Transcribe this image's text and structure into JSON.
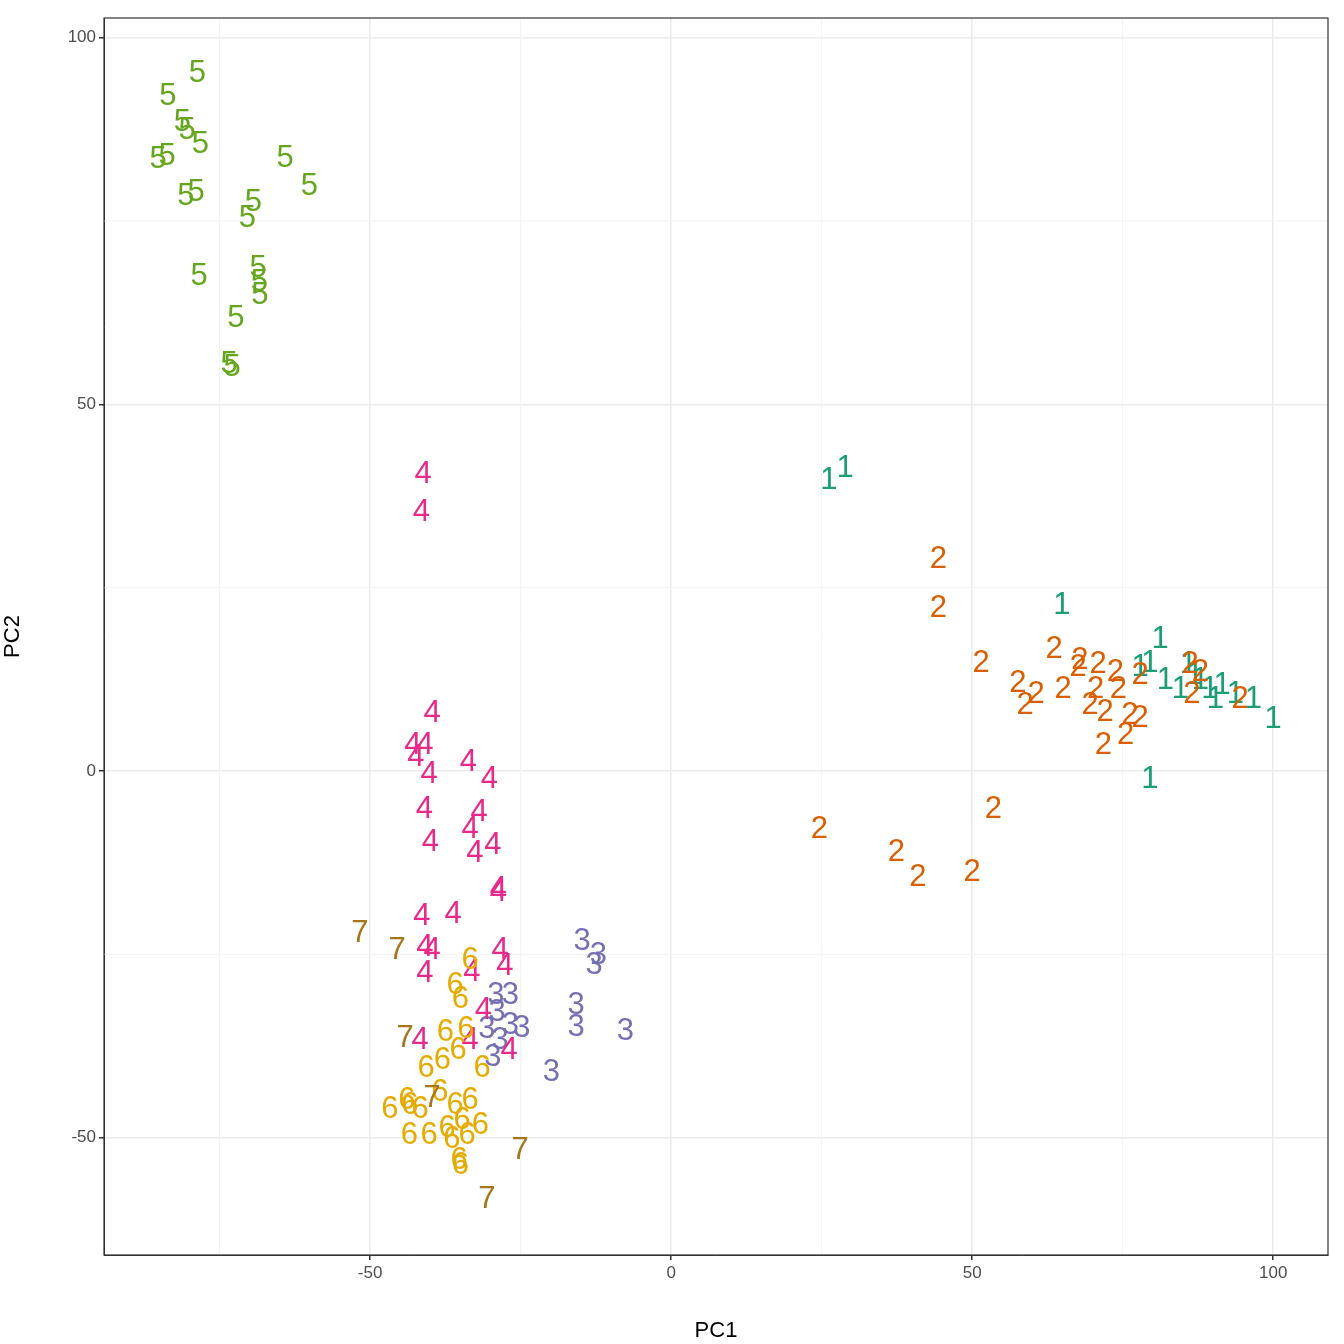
{
  "chart_data": {
    "type": "scatter",
    "x_label": "PC1",
    "y_label": "PC2",
    "xlim": [
      -94.2,
      109.1
    ],
    "ylim": [
      -66.0,
      102.7
    ],
    "xticks": [
      -50,
      0,
      50,
      100
    ],
    "yticks": [
      -50,
      0,
      50,
      100
    ],
    "grid": true,
    "series": [
      {
        "name": "1",
        "color": "#1b9e77",
        "marker": "text",
        "x": [
          26.2,
          28.9,
          64.9,
          81.2,
          79.5,
          82.1,
          85.9,
          87.9,
          89.5,
          91.5,
          93.7,
          90.4,
          96.7,
          100.0,
          79.5,
          87.0,
          77.9,
          84.6
        ],
        "y": [
          39.6,
          41.2,
          22.6,
          17.9,
          14.7,
          12.4,
          14.5,
          12.4,
          11.1,
          11.7,
          10.4,
          9.7,
          9.7,
          7.0,
          -1.2,
          13.1,
          14.1,
          11.1
        ]
      },
      {
        "name": "2",
        "color": "#d95f02",
        "marker": "text",
        "x": [
          44.4,
          44.4,
          51.5,
          63.6,
          57.6,
          60.6,
          58.8,
          65.1,
          67.9,
          70.9,
          73.8,
          70.5,
          74.3,
          77.9,
          69.6,
          72.1,
          76.2,
          77.9,
          71.8,
          75.5,
          86.2,
          87.9,
          86.5,
          94.5,
          53.5,
          24.6,
          37.4,
          41.0,
          50.0,
          67.6
        ],
        "y": [
          28.9,
          22.2,
          14.7,
          16.6,
          12.0,
          10.4,
          9.0,
          11.1,
          15.1,
          14.5,
          13.4,
          11.1,
          11.1,
          13.1,
          9.0,
          8.0,
          7.6,
          7.2,
          3.5,
          4.9,
          14.5,
          13.5,
          10.4,
          9.7,
          -5.3,
          -8.0,
          -11.1,
          -14.5,
          -13.8,
          14.1
        ]
      },
      {
        "name": "3",
        "color": "#7570b3",
        "marker": "text",
        "x": [
          -14.8,
          -12.1,
          -12.8,
          -29.1,
          -26.7,
          -15.8,
          -15.8,
          -7.6,
          -28.9,
          -24.8,
          -30.6,
          -28.4,
          -29.6,
          -19.9,
          -26.7
        ],
        "y": [
          -23.3,
          -25.1,
          -26.5,
          -30.6,
          -30.6,
          -31.9,
          -34.9,
          -35.5,
          -32.9,
          -35.1,
          -35.3,
          -36.7,
          -39.0,
          -41.1,
          -34.7
        ]
      },
      {
        "name": "4",
        "color": "#e7298a",
        "marker": "text",
        "x": [
          -41.2,
          -41.5,
          -39.7,
          -40.9,
          -42.9,
          -42.4,
          -40.2,
          -33.7,
          -30.2,
          -41.0,
          -31.9,
          -40.0,
          -33.4,
          -29.6,
          -32.6,
          -28.7,
          -28.7,
          -41.4,
          -36.2,
          -40.9,
          -39.7,
          -28.4,
          -27.6,
          -33.1,
          -40.9,
          -31.2,
          -41.7,
          -26.9,
          -33.4
        ],
        "y": [
          40.5,
          35.3,
          7.9,
          3.5,
          3.5,
          1.9,
          -0.5,
          1.2,
          -1.1,
          -5.3,
          -5.6,
          -9.8,
          -8.0,
          -10.1,
          -11.2,
          -16.2,
          -16.6,
          -19.8,
          -19.5,
          -24.1,
          -24.4,
          -24.4,
          -26.7,
          -27.4,
          -27.6,
          -32.6,
          -36.7,
          -38.1,
          -36.7
        ]
      },
      {
        "name": "5",
        "color": "#66a61e",
        "marker": "text",
        "x": [
          -78.7,
          -83.6,
          -81.2,
          -80.4,
          -78.2,
          -85.2,
          -83.7,
          -64.1,
          -60.1,
          -80.6,
          -78.9,
          -69.4,
          -70.4,
          -78.4,
          -68.6,
          -68.4,
          -68.3,
          -72.3,
          -73.4,
          -72.9
        ],
        "y": [
          95.2,
          92.0,
          88.5,
          87.4,
          85.4,
          83.4,
          83.8,
          83.6,
          79.7,
          78.3,
          78.9,
          77.6,
          75.4,
          67.4,
          68.6,
          66.7,
          64.8,
          61.7,
          55.4,
          55.0
        ]
      },
      {
        "name": "6",
        "color": "#e6ab02",
        "marker": "text",
        "x": [
          -33.4,
          -35.9,
          -35.0,
          -34.1,
          -37.5,
          -40.7,
          -38.0,
          -35.4,
          -31.4,
          -43.9,
          -46.7,
          -41.7,
          -35.9,
          -31.7,
          -43.5,
          -40.2,
          -37.2,
          -34.7,
          -33.9,
          -36.4,
          -35.2,
          -35.0,
          -38.4,
          -33.4,
          -43.4
        ],
        "y": [
          -25.8,
          -29.2,
          -31.2,
          -35.3,
          -35.7,
          -40.5,
          -39.4,
          -38.1,
          -40.5,
          -44.9,
          -46.2,
          -46.2,
          -45.6,
          -48.3,
          -49.7,
          -49.7,
          -48.7,
          -47.6,
          -49.7,
          -50.3,
          -53.1,
          -53.8,
          -43.9,
          -44.9,
          -45.6
        ]
      },
      {
        "name": "7",
        "color": "#a6761d",
        "marker": "text",
        "x": [
          -51.7,
          -45.5,
          -44.2,
          -39.7,
          -25.1,
          -30.6
        ],
        "y": [
          -22.1,
          -24.4,
          -36.4,
          -44.6,
          -51.7,
          -58.4
        ]
      }
    ]
  }
}
